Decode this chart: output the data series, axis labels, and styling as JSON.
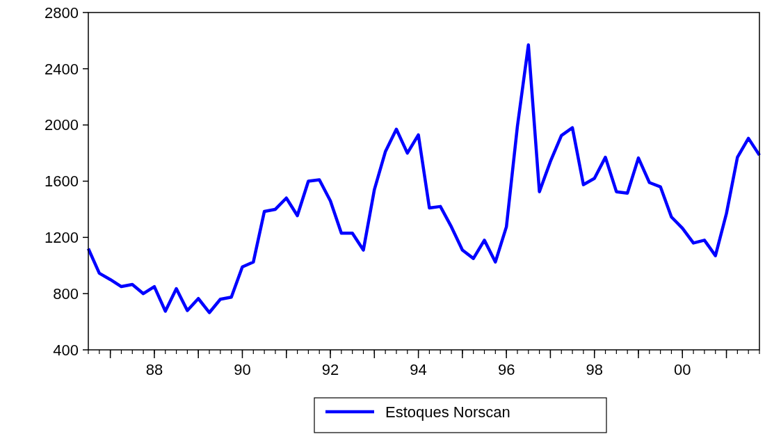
{
  "chart_data": {
    "type": "line",
    "x": [
      1986.5,
      1986.75,
      1987,
      1987.25,
      1987.5,
      1987.75,
      1988,
      1988.25,
      1988.5,
      1988.75,
      1989,
      1989.25,
      1989.5,
      1989.75,
      1990,
      1990.25,
      1990.5,
      1990.75,
      1991,
      1991.25,
      1991.5,
      1991.75,
      1992,
      1992.25,
      1992.5,
      1992.75,
      1993,
      1993.25,
      1993.5,
      1993.75,
      1994,
      1994.25,
      1994.5,
      1994.75,
      1995,
      1995.25,
      1995.5,
      1995.75,
      1996,
      1996.25,
      1996.5,
      1996.75,
      1997,
      1997.25,
      1997.5,
      1997.75,
      1998,
      1998.25,
      1998.5,
      1998.75,
      1999,
      1999.25,
      1999.5,
      1999.75,
      2000,
      2000.25,
      2000.5,
      2000.75,
      2001,
      2001.25,
      2001.5,
      2001.75
    ],
    "series": [
      {
        "name": "Estoques Norscan",
        "color": "#0000ff",
        "values": [
          1120,
          945,
          900,
          850,
          865,
          800,
          850,
          675,
          835,
          680,
          765,
          665,
          760,
          775,
          990,
          1025,
          1385,
          1400,
          1480,
          1355,
          1600,
          1610,
          1460,
          1230,
          1230,
          1110,
          1540,
          1810,
          1970,
          1800,
          1930,
          1410,
          1420,
          1275,
          1110,
          1050,
          1180,
          1025,
          1275,
          1990,
          2570,
          1525,
          1740,
          1925,
          1980,
          1575,
          1620,
          1770,
          1525,
          1515,
          1765,
          1590,
          1560,
          1345,
          1265,
          1160,
          1180,
          1070,
          1370,
          1770,
          1905,
          1785
        ]
      }
    ],
    "xlim": [
      1986.5,
      2001.75
    ],
    "xticks": [
      {
        "value": 1987,
        "label": null
      },
      {
        "value": 1988,
        "label": "88"
      },
      {
        "value": 1989,
        "label": null
      },
      {
        "value": 1990,
        "label": "90"
      },
      {
        "value": 1991,
        "label": null
      },
      {
        "value": 1992,
        "label": "92"
      },
      {
        "value": 1993,
        "label": null
      },
      {
        "value": 1994,
        "label": "94"
      },
      {
        "value": 1995,
        "label": null
      },
      {
        "value": 1996,
        "label": "96"
      },
      {
        "value": 1997,
        "label": null
      },
      {
        "value": 1998,
        "label": "98"
      },
      {
        "value": 1999,
        "label": null
      },
      {
        "value": 2000,
        "label": "00"
      },
      {
        "value": 2001,
        "label": null
      }
    ],
    "ylim": [
      400,
      2800
    ],
    "yticks": [
      400,
      800,
      1200,
      1600,
      2000,
      2400,
      2800
    ],
    "legend": "bottom",
    "grid": false,
    "line_style": "solid",
    "marker": "none"
  }
}
